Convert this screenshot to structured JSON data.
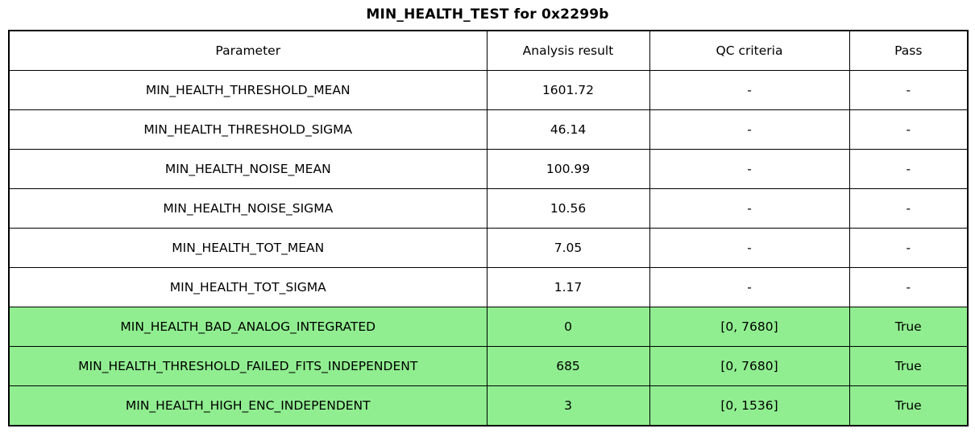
{
  "title": "MIN_HEALTH_TEST for 0x2299b",
  "chart_data": {
    "type": "table",
    "title": "MIN_HEALTH_TEST for 0x2299b",
    "columns": [
      "Parameter",
      "Analysis result",
      "QC criteria",
      "Pass"
    ],
    "rows": [
      {
        "parameter": "MIN_HEALTH_THRESHOLD_MEAN",
        "analysis_result": "1601.72",
        "qc_criteria": "-",
        "pass": "-",
        "highlight": false
      },
      {
        "parameter": "MIN_HEALTH_THRESHOLD_SIGMA",
        "analysis_result": "46.14",
        "qc_criteria": "-",
        "pass": "-",
        "highlight": false
      },
      {
        "parameter": "MIN_HEALTH_NOISE_MEAN",
        "analysis_result": "100.99",
        "qc_criteria": "-",
        "pass": "-",
        "highlight": false
      },
      {
        "parameter": "MIN_HEALTH_NOISE_SIGMA",
        "analysis_result": "10.56",
        "qc_criteria": "-",
        "pass": "-",
        "highlight": false
      },
      {
        "parameter": "MIN_HEALTH_TOT_MEAN",
        "analysis_result": "7.05",
        "qc_criteria": "-",
        "pass": "-",
        "highlight": false
      },
      {
        "parameter": "MIN_HEALTH_TOT_SIGMA",
        "analysis_result": "1.17",
        "qc_criteria": "-",
        "pass": "-",
        "highlight": false
      },
      {
        "parameter": "MIN_HEALTH_BAD_ANALOG_INTEGRATED",
        "analysis_result": "0",
        "qc_criteria": "[0, 7680]",
        "pass": "True",
        "highlight": true
      },
      {
        "parameter": "MIN_HEALTH_THRESHOLD_FAILED_FITS_INDEPENDENT",
        "analysis_result": "685",
        "qc_criteria": "[0, 7680]",
        "pass": "True",
        "highlight": true
      },
      {
        "parameter": "MIN_HEALTH_HIGH_ENC_INDEPENDENT",
        "analysis_result": "3",
        "qc_criteria": "[0, 1536]",
        "pass": "True",
        "highlight": true
      }
    ],
    "highlight_color": "#90ee90",
    "border_color": "#000000",
    "background_color": "#ffffff",
    "text_color": "#000000"
  }
}
